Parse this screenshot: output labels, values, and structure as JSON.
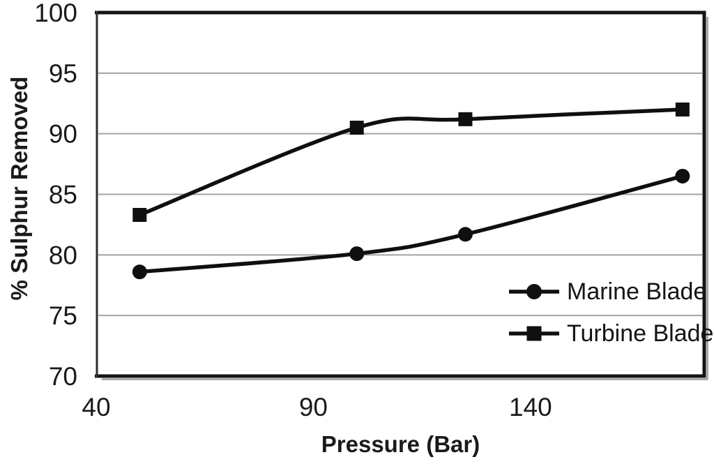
{
  "chart_data": {
    "type": "line",
    "title": "",
    "xlabel": "Pressure (Bar)",
    "ylabel": "% Sulphur Removed",
    "x_axis": {
      "min": 40,
      "max": 180,
      "ticks": [
        40,
        90,
        140
      ]
    },
    "y_axis": {
      "min": 70,
      "max": 100,
      "ticks": [
        70,
        75,
        80,
        85,
        90,
        95,
        100
      ]
    },
    "x": [
      50,
      100,
      125,
      175
    ],
    "series": [
      {
        "name": "Marine Blade",
        "marker": "circle",
        "values": [
          78.6,
          80.1,
          81.7,
          86.5
        ]
      },
      {
        "name": "Turbine Blade",
        "marker": "square",
        "values": [
          83.3,
          90.5,
          91.2,
          92.0
        ]
      }
    ],
    "smoothed": true,
    "grid": true,
    "legend_position": "inside bottom-right",
    "colors": {
      "line": "#0f0f0f",
      "grid": "#a3a3a3",
      "text": "#1a1a1a",
      "frame": "#141414",
      "axis": "#2e2e2e",
      "shadow": "#9b9b9b",
      "background": "#ffffff"
    }
  }
}
